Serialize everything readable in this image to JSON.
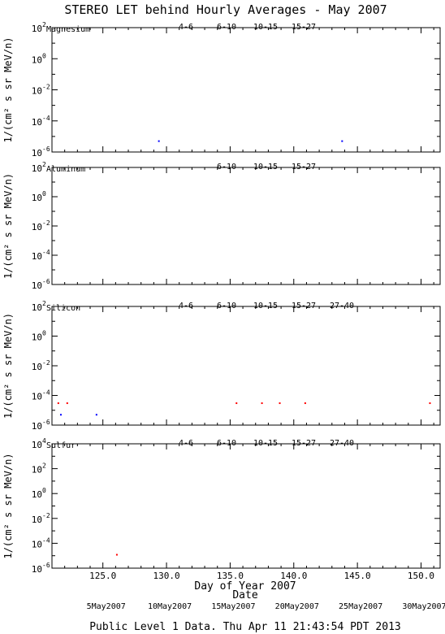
{
  "title": "STEREO LET behind Hourly Averages - May 2007",
  "footer": "Public Level 1 Data. Thu Apr 11 21:43:54 PDT 2013",
  "colors": {
    "4-6": "#b00000",
    "6-10": "#ff0000",
    "10-15": "#909090",
    "15-27": "#0000ff",
    "27-40": "#000000"
  },
  "chart_data": [
    {
      "type": "scatter",
      "title": "Magnesium",
      "ylabel": "1/(cm² s sr MeV/n)",
      "yscale": "log",
      "ylim": [
        1e-06,
        100
      ],
      "yticks": [
        {
          "base": "10",
          "exp": "2"
        },
        {
          "base": "10",
          "exp": "0"
        },
        {
          "base": "10",
          "exp": "-2"
        },
        {
          "base": "10",
          "exp": "-4"
        },
        {
          "base": "10",
          "exp": "-6"
        }
      ],
      "legend": [
        "4-6",
        "6-10",
        "10-15",
        "15-27"
      ],
      "series": [
        {
          "name": "15-27",
          "points": [
            [
              129.4,
              5e-06
            ],
            [
              143.8,
              5e-06
            ]
          ]
        }
      ]
    },
    {
      "type": "scatter",
      "title": "Aluminum",
      "ylabel": "1/(cm² s sr MeV/n)",
      "yscale": "log",
      "ylim": [
        1e-06,
        100
      ],
      "yticks": [
        {
          "base": "10",
          "exp": "2"
        },
        {
          "base": "10",
          "exp": "0"
        },
        {
          "base": "10",
          "exp": "-2"
        },
        {
          "base": "10",
          "exp": "-4"
        },
        {
          "base": "10",
          "exp": "-6"
        }
      ],
      "legend": [
        "6-10",
        "10-15",
        "15-27"
      ],
      "series": []
    },
    {
      "type": "scatter",
      "title": "Silicon",
      "ylabel": "1/(cm² s sr MeV/n)",
      "yscale": "log",
      "ylim": [
        1e-06,
        100
      ],
      "yticks": [
        {
          "base": "10",
          "exp": "2"
        },
        {
          "base": "10",
          "exp": "0"
        },
        {
          "base": "10",
          "exp": "-2"
        },
        {
          "base": "10",
          "exp": "-4"
        },
        {
          "base": "10",
          "exp": "-6"
        }
      ],
      "legend": [
        "4-6",
        "6-10",
        "10-15",
        "15-27",
        "27-40"
      ],
      "series": [
        {
          "name": "6-10",
          "points": [
            [
              121.5,
              3e-05
            ],
            [
              122.2,
              3e-05
            ],
            [
              135.5,
              3e-05
            ],
            [
              137.5,
              3e-05
            ],
            [
              138.9,
              3e-05
            ],
            [
              140.9,
              3e-05
            ],
            [
              150.7,
              3e-05
            ]
          ]
        },
        {
          "name": "15-27",
          "points": [
            [
              121.7,
              5e-06
            ],
            [
              124.5,
              5e-06
            ]
          ]
        }
      ]
    },
    {
      "type": "scatter",
      "title": "Sulfur",
      "ylabel": "1/(cm² s sr MeV/n)",
      "yscale": "log",
      "ylim": [
        1e-06,
        10000
      ],
      "yticks": [
        {
          "base": "10",
          "exp": "4"
        },
        {
          "base": "10",
          "exp": "2"
        },
        {
          "base": "10",
          "exp": "0"
        },
        {
          "base": "10",
          "exp": "-2"
        },
        {
          "base": "10",
          "exp": "-4"
        },
        {
          "base": "10",
          "exp": "-6"
        }
      ],
      "legend": [
        "4-6",
        "6-10",
        "10-15",
        "15-27",
        "27-40"
      ],
      "series": [
        {
          "name": "6-10",
          "points": [
            [
              126.1,
              1.2e-05
            ]
          ]
        }
      ]
    }
  ],
  "xaxis": {
    "label": "Day of Year 2007",
    "xlim": [
      121,
      151.5
    ],
    "ticks": [
      125,
      130,
      135,
      140,
      145,
      150
    ],
    "tick_labels": [
      "125.0",
      "130.0",
      "135.0",
      "140.0",
      "145.0",
      "150.0"
    ]
  },
  "date_axis": {
    "label": "Date",
    "ticks": [
      {
        "doy": 125,
        "label": "5May2007"
      },
      {
        "doy": 130,
        "label": "10May2007"
      },
      {
        "doy": 135,
        "label": "15May2007"
      },
      {
        "doy": 140,
        "label": "20May2007"
      },
      {
        "doy": 145,
        "label": "25May2007"
      },
      {
        "doy": 150,
        "label": "30May2007"
      }
    ]
  }
}
